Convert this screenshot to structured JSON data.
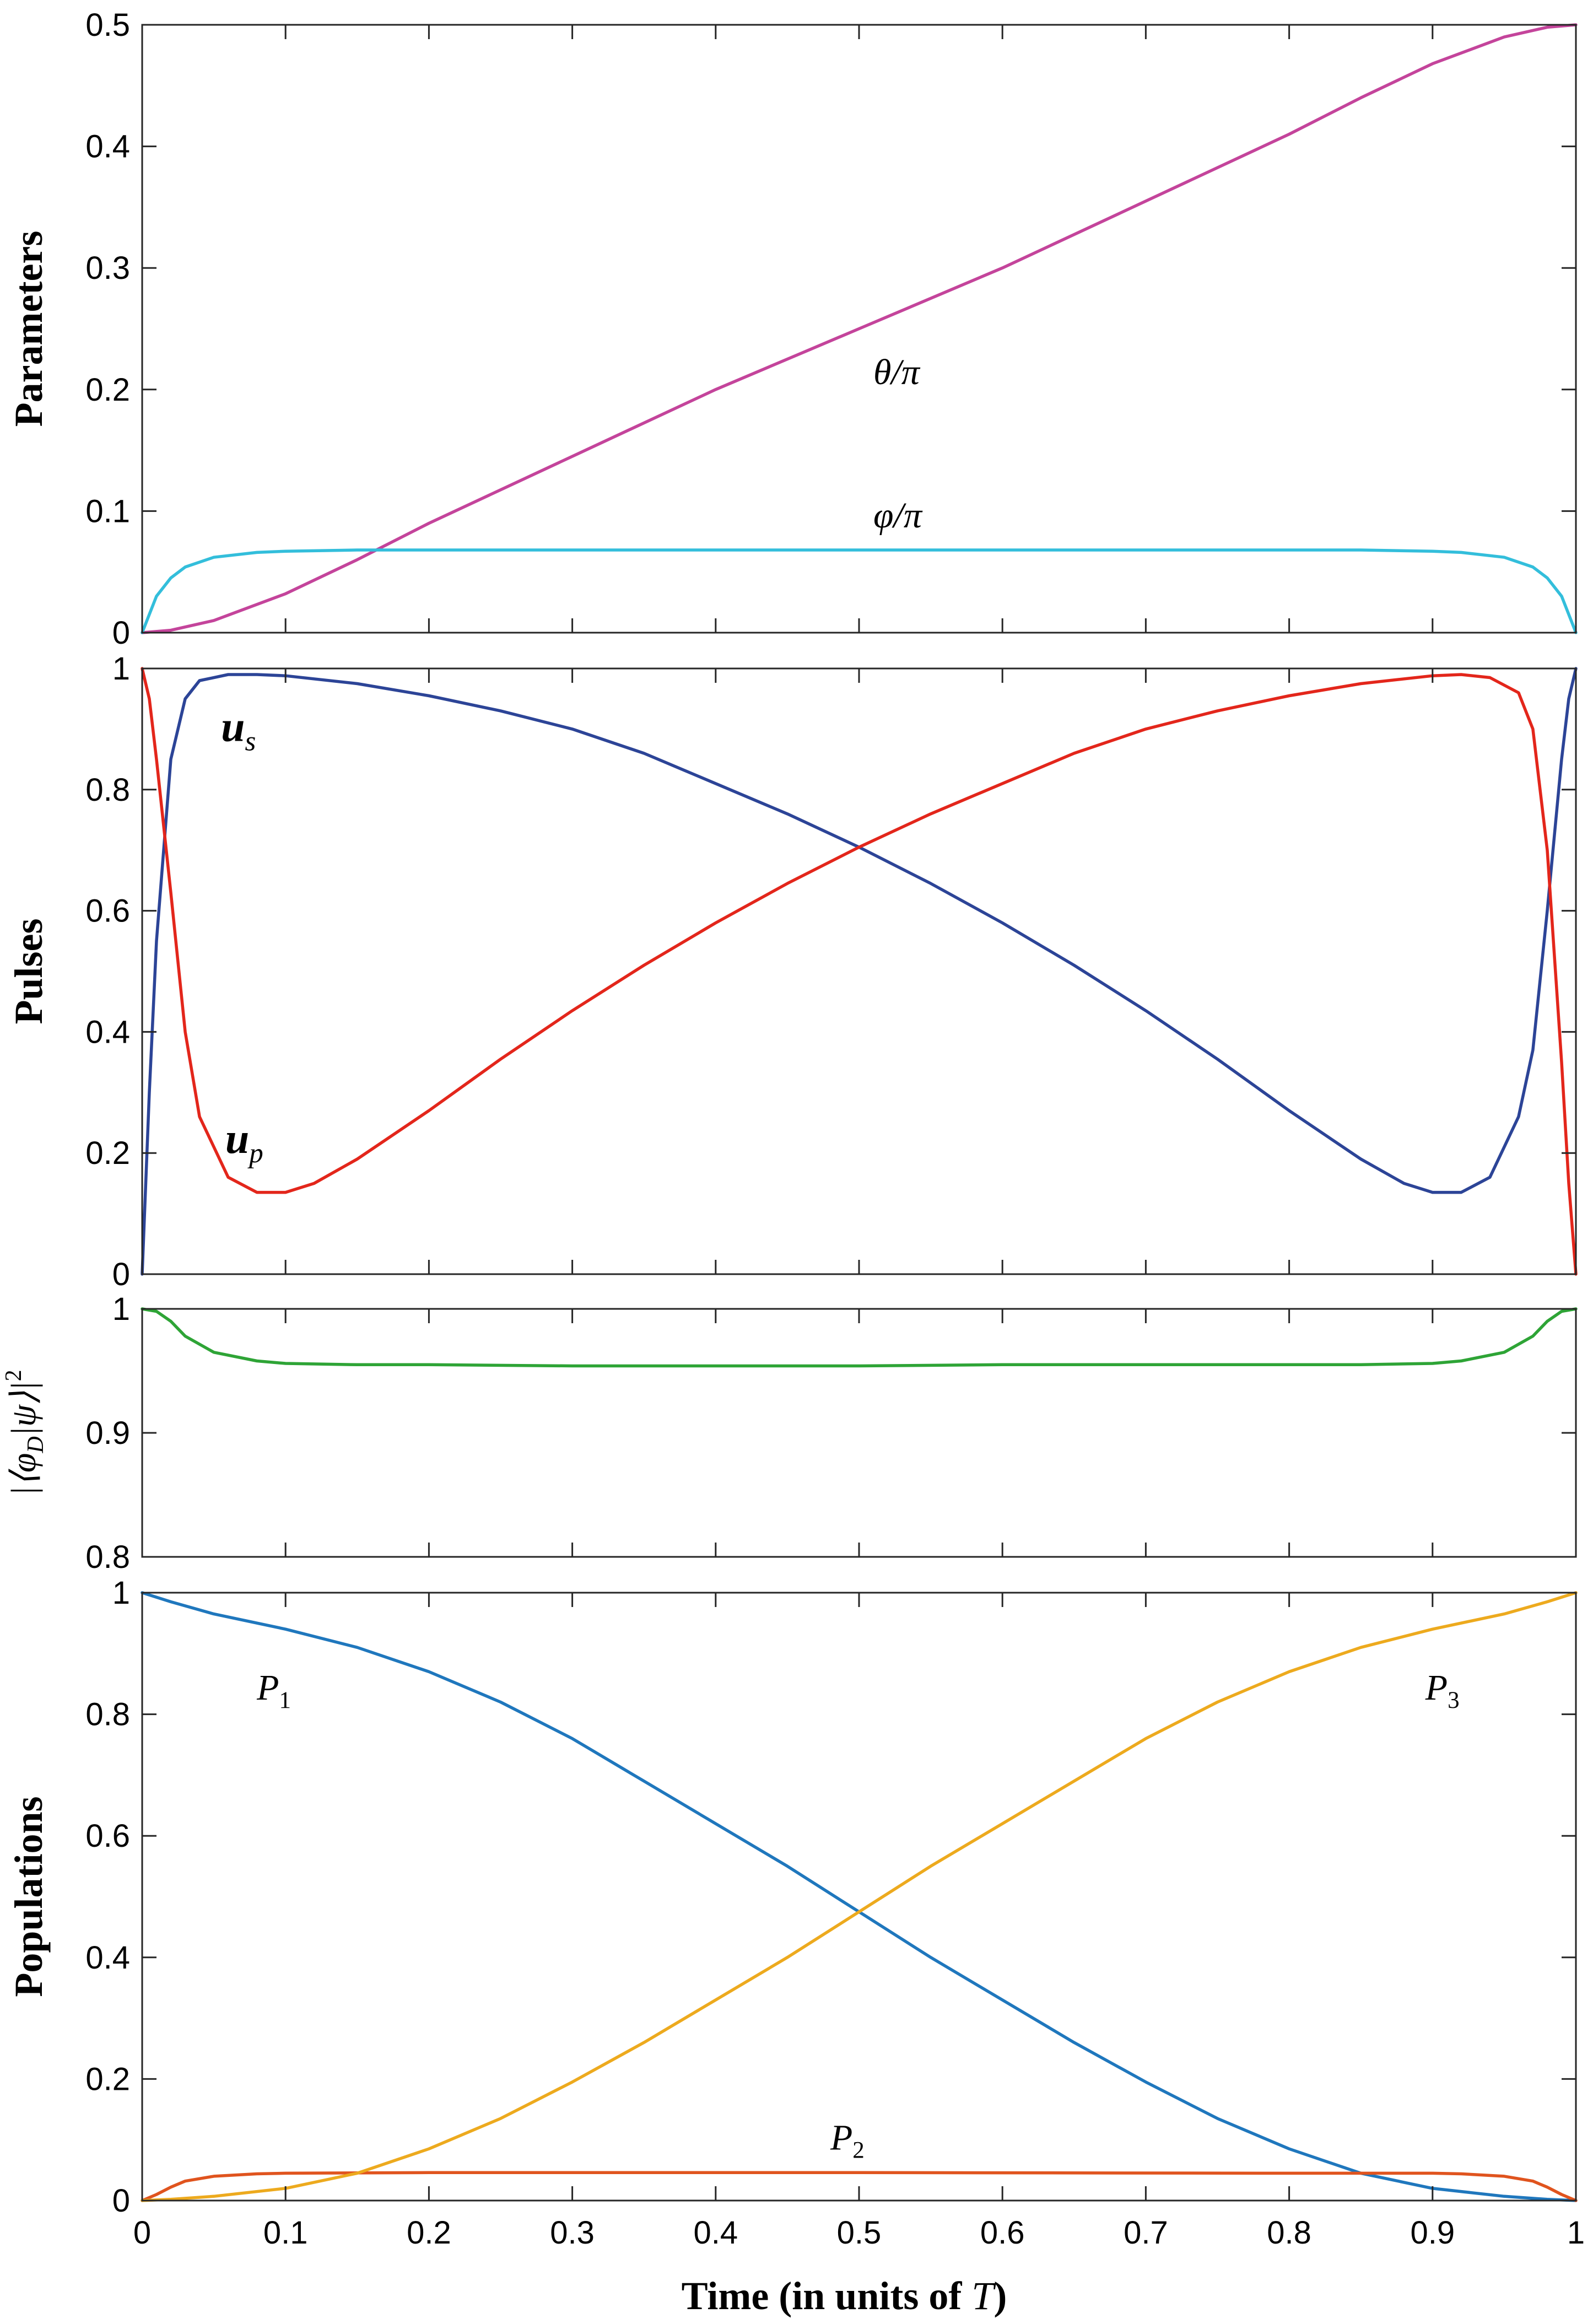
{
  "figure": {
    "xlabel": "Time (in units of T)"
  },
  "colors": {
    "theta": "#C4449B",
    "varphi": "#33BEDB",
    "us": "#2C4497",
    "up": "#E3261B",
    "fidelity": "#2EA436",
    "P1": "#1F77BD",
    "P2": "#E0541E",
    "P3": "#EDAA1E"
  },
  "chart_data": [
    {
      "type": "line",
      "ylabel": "Parameters",
      "xlim": [
        0,
        1
      ],
      "ylim": [
        0,
        0.5
      ],
      "xticks": [
        0,
        0.1,
        0.2,
        0.3,
        0.4,
        0.5,
        0.6,
        0.7,
        0.8,
        0.9,
        1
      ],
      "yticks": [
        "0",
        "0.1",
        "0.2",
        "0.3",
        "0.4",
        "0.5"
      ],
      "series": [
        {
          "name": "θ/π",
          "label": "θ/π",
          "label_at": [
            0.51,
            0.215
          ],
          "x": [
            0,
            0.02,
            0.05,
            0.1,
            0.15,
            0.2,
            0.3,
            0.4,
            0.5,
            0.6,
            0.7,
            0.8,
            0.85,
            0.9,
            0.95,
            0.98,
            1
          ],
          "y": [
            0,
            0.002,
            0.01,
            0.032,
            0.06,
            0.09,
            0.145,
            0.2,
            0.25,
            0.3,
            0.355,
            0.41,
            0.44,
            0.468,
            0.49,
            0.498,
            0.5
          ]
        },
        {
          "name": "φ/π",
          "label": "φ/π",
          "label_at": [
            0.51,
            0.097
          ],
          "x": [
            0,
            0.01,
            0.02,
            0.03,
            0.05,
            0.08,
            0.1,
            0.15,
            0.2,
            0.5,
            0.8,
            0.85,
            0.9,
            0.92,
            0.95,
            0.97,
            0.98,
            0.99,
            1
          ],
          "y": [
            0,
            0.03,
            0.045,
            0.054,
            0.062,
            0.066,
            0.067,
            0.068,
            0.068,
            0.068,
            0.068,
            0.068,
            0.067,
            0.066,
            0.062,
            0.054,
            0.045,
            0.03,
            0
          ]
        }
      ]
    },
    {
      "type": "line",
      "ylabel": "Pulses",
      "xlim": [
        0,
        1
      ],
      "ylim": [
        0,
        1
      ],
      "yticks": [
        "0",
        "0.2",
        "0.4",
        "0.6",
        "0.8",
        "1"
      ],
      "series": [
        {
          "name": "u_s",
          "label": "u",
          "subscript": "s",
          "label_at": [
            0.055,
            0.905
          ],
          "x": [
            0,
            0.005,
            0.01,
            0.02,
            0.03,
            0.04,
            0.06,
            0.08,
            0.1,
            0.15,
            0.2,
            0.25,
            0.3,
            0.35,
            0.4,
            0.45,
            0.5,
            0.55,
            0.6,
            0.65,
            0.7,
            0.75,
            0.8,
            0.85,
            0.88,
            0.9,
            0.92,
            0.94,
            0.96,
            0.97,
            0.98,
            0.99,
            0.995,
            1
          ],
          "y": [
            0,
            0.3,
            0.55,
            0.85,
            0.95,
            0.98,
            0.99,
            0.99,
            0.988,
            0.975,
            0.955,
            0.93,
            0.9,
            0.86,
            0.81,
            0.76,
            0.705,
            0.645,
            0.58,
            0.51,
            0.435,
            0.355,
            0.27,
            0.19,
            0.15,
            0.135,
            0.135,
            0.16,
            0.26,
            0.37,
            0.6,
            0.85,
            0.95,
            1
          ]
        },
        {
          "name": "u_p",
          "label": "u",
          "subscript": "p",
          "label_at": [
            0.058,
            0.225
          ],
          "x": [
            0,
            0.005,
            0.01,
            0.02,
            0.03,
            0.04,
            0.06,
            0.08,
            0.1,
            0.12,
            0.15,
            0.2,
            0.25,
            0.3,
            0.35,
            0.4,
            0.45,
            0.5,
            0.55,
            0.6,
            0.65,
            0.7,
            0.75,
            0.8,
            0.85,
            0.9,
            0.92,
            0.94,
            0.96,
            0.97,
            0.98,
            0.99,
            0.995,
            1
          ],
          "y": [
            1,
            0.95,
            0.85,
            0.63,
            0.4,
            0.26,
            0.16,
            0.135,
            0.135,
            0.15,
            0.19,
            0.27,
            0.355,
            0.435,
            0.51,
            0.58,
            0.645,
            0.705,
            0.76,
            0.81,
            0.86,
            0.9,
            0.93,
            0.955,
            0.975,
            0.988,
            0.99,
            0.985,
            0.96,
            0.9,
            0.7,
            0.35,
            0.15,
            0
          ]
        }
      ]
    },
    {
      "type": "line",
      "ylabel": "|⟨φD|ψ⟩|²",
      "ylabel_main": "|⟨φ",
      "ylabel_sub": "D",
      "ylabel_rest": "|ψ⟩|",
      "ylabel_sup": "2",
      "xlim": [
        0,
        1
      ],
      "ylim": [
        0.8,
        1
      ],
      "yticks": [
        "0.8",
        "0.9",
        "1"
      ],
      "series": [
        {
          "name": "fidelity",
          "x": [
            0,
            0.01,
            0.02,
            0.03,
            0.05,
            0.08,
            0.1,
            0.15,
            0.2,
            0.3,
            0.4,
            0.5,
            0.6,
            0.7,
            0.8,
            0.85,
            0.9,
            0.92,
            0.95,
            0.97,
            0.98,
            0.99,
            1
          ],
          "y": [
            1,
            0.998,
            0.99,
            0.978,
            0.965,
            0.958,
            0.956,
            0.955,
            0.955,
            0.954,
            0.954,
            0.954,
            0.955,
            0.955,
            0.955,
            0.955,
            0.956,
            0.958,
            0.965,
            0.978,
            0.99,
            0.998,
            1
          ]
        }
      ]
    },
    {
      "type": "line",
      "ylabel": "Populations",
      "xlim": [
        0,
        1
      ],
      "ylim": [
        0,
        1
      ],
      "xticks": [
        0,
        0.1,
        0.2,
        0.3,
        0.4,
        0.5,
        0.6,
        0.7,
        0.8,
        0.9,
        1
      ],
      "xticklabels": [
        "0",
        "0.1",
        "0.2",
        "0.3",
        "0.4",
        "0.5",
        "0.6",
        "0.7",
        "0.8",
        "0.9",
        "1"
      ],
      "yticks": [
        "0",
        "0.2",
        "0.4",
        "0.6",
        "0.8",
        "1"
      ],
      "series": [
        {
          "name": "P1",
          "label": "P",
          "subscript": "1",
          "label_at": [
            0.08,
            0.845
          ],
          "x": [
            0,
            0.02,
            0.05,
            0.1,
            0.15,
            0.2,
            0.25,
            0.3,
            0.35,
            0.4,
            0.45,
            0.5,
            0.55,
            0.6,
            0.65,
            0.7,
            0.75,
            0.8,
            0.85,
            0.9,
            0.95,
            0.98,
            1
          ],
          "y": [
            1,
            0.985,
            0.965,
            0.94,
            0.91,
            0.87,
            0.82,
            0.76,
            0.69,
            0.62,
            0.55,
            0.475,
            0.4,
            0.33,
            0.26,
            0.195,
            0.135,
            0.085,
            0.045,
            0.02,
            0.007,
            0.002,
            0
          ]
        },
        {
          "name": "P2",
          "label": "P",
          "subscript": "2",
          "label_at": [
            0.48,
            0.105
          ],
          "x": [
            0,
            0.01,
            0.02,
            0.03,
            0.05,
            0.08,
            0.1,
            0.2,
            0.5,
            0.8,
            0.9,
            0.92,
            0.95,
            0.97,
            0.98,
            0.99,
            1
          ],
          "y": [
            0,
            0.01,
            0.022,
            0.032,
            0.04,
            0.044,
            0.045,
            0.046,
            0.046,
            0.045,
            0.045,
            0.044,
            0.04,
            0.032,
            0.022,
            0.01,
            0
          ]
        },
        {
          "name": "P3",
          "label": "P",
          "subscript": "3",
          "label_at": [
            0.895,
            0.845
          ],
          "x": [
            0,
            0.02,
            0.05,
            0.1,
            0.15,
            0.2,
            0.25,
            0.3,
            0.35,
            0.4,
            0.45,
            0.5,
            0.55,
            0.6,
            0.65,
            0.7,
            0.75,
            0.8,
            0.85,
            0.9,
            0.95,
            0.98,
            1
          ],
          "y": [
            0,
            0.002,
            0.007,
            0.02,
            0.045,
            0.085,
            0.135,
            0.195,
            0.26,
            0.33,
            0.4,
            0.475,
            0.55,
            0.62,
            0.69,
            0.76,
            0.82,
            0.87,
            0.91,
            0.94,
            0.965,
            0.985,
            1
          ]
        }
      ]
    }
  ]
}
